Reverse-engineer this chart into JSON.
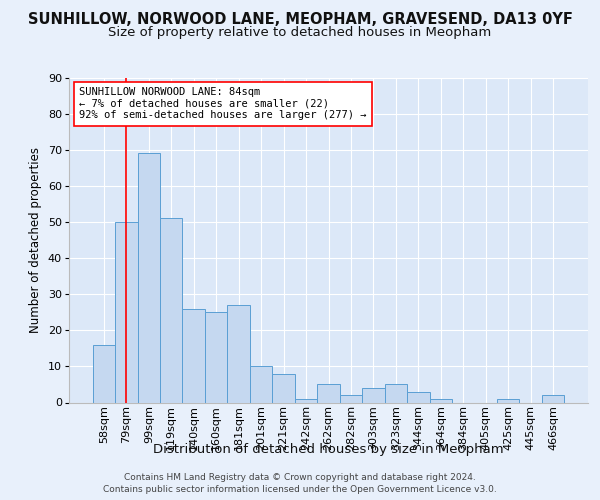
{
  "title": "SUNHILLOW, NORWOOD LANE, MEOPHAM, GRAVESEND, DA13 0YF",
  "subtitle": "Size of property relative to detached houses in Meopham",
  "xlabel": "Distribution of detached houses by size in Meopham",
  "ylabel": "Number of detached properties",
  "categories": [
    "58sqm",
    "79sqm",
    "99sqm",
    "119sqm",
    "140sqm",
    "160sqm",
    "181sqm",
    "201sqm",
    "221sqm",
    "242sqm",
    "262sqm",
    "282sqm",
    "303sqm",
    "323sqm",
    "344sqm",
    "364sqm",
    "384sqm",
    "405sqm",
    "425sqm",
    "445sqm",
    "466sqm"
  ],
  "values": [
    16,
    50,
    69,
    51,
    26,
    25,
    27,
    10,
    8,
    1,
    5,
    2,
    4,
    5,
    3,
    1,
    0,
    0,
    1,
    0,
    2
  ],
  "bar_color": "#c5d8f0",
  "bar_edge_color": "#5a9fd4",
  "ylim": [
    0,
    90
  ],
  "yticks": [
    0,
    10,
    20,
    30,
    40,
    50,
    60,
    70,
    80,
    90
  ],
  "annotation_line1": "SUNHILLOW NORWOOD LANE: 84sqm",
  "annotation_line2": "← 7% of detached houses are smaller (22)",
  "annotation_line3": "92% of semi-detached houses are larger (277) →",
  "red_line_x": 1,
  "background_color": "#e8f0fb",
  "plot_bg_color": "#dce8f8",
  "footer_line1": "Contains HM Land Registry data © Crown copyright and database right 2024.",
  "footer_line2": "Contains public sector information licensed under the Open Government Licence v3.0.",
  "title_fontsize": 10.5,
  "subtitle_fontsize": 9.5,
  "xlabel_fontsize": 9.5,
  "ylabel_fontsize": 8.5,
  "tick_fontsize": 8,
  "annotation_fontsize": 7.5,
  "footer_fontsize": 6.5
}
